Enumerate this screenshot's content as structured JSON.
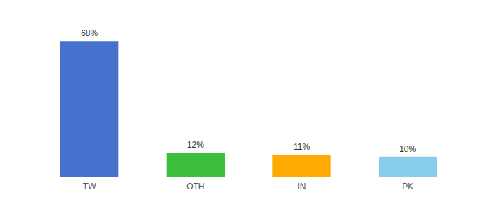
{
  "chart_data": {
    "type": "bar",
    "categories": [
      "TW",
      "OTH",
      "IN",
      "PK"
    ],
    "values": [
      68,
      12,
      11,
      10
    ],
    "value_labels": [
      "68%",
      "12%",
      "11%",
      "10%"
    ],
    "colors": [
      "#4472cc",
      "#3dbf3d",
      "#ffaa00",
      "#87ceeb"
    ],
    "ylim": [
      0,
      78
    ],
    "grid": false,
    "data_labels": true,
    "tick_labels": "x"
  }
}
